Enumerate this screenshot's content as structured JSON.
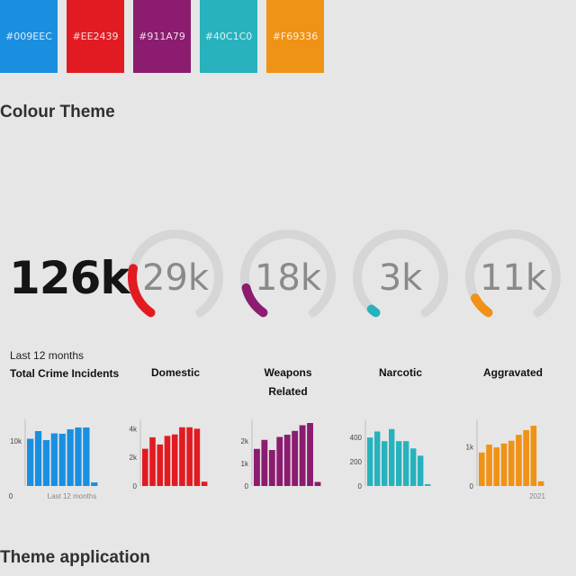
{
  "swatches": [
    {
      "hex": "#009EEC",
      "color": "#1a8fe0",
      "x": 0
    },
    {
      "hex": "#EE2439",
      "color": "#e21b22",
      "x": 74
    },
    {
      "hex": "#911A79",
      "color": "#8b1c6f",
      "x": 148
    },
    {
      "hex": "#40C1C0",
      "color": "#27b2bd",
      "x": 222
    },
    {
      "hex": "#F69336",
      "color": "#f09215",
      "x": 296
    }
  ],
  "section_colour_theme": "Colour Theme",
  "section_theme_application": "Theme application",
  "total": {
    "value": "126k",
    "sub": "Last 12 months",
    "label": "Total Crime Incidents"
  },
  "gauges": [
    {
      "value": "29k",
      "label": "Domestic",
      "color": "#e21b22",
      "fraction": 0.23
    },
    {
      "value": "18k",
      "label": "Weapons\nRelated",
      "color": "#8b1c6f",
      "fraction": 0.14
    },
    {
      "value": "3k",
      "label": "Narcotic",
      "color": "#27b2bd",
      "fraction": 0.025
    },
    {
      "value": "11k",
      "label": "Aggravated",
      "color": "#f09215",
      "fraction": 0.09
    }
  ],
  "chart_data": [
    {
      "type": "bar",
      "color": "#1a8fe0",
      "yticks": [
        "10k"
      ],
      "ytick_values": [
        10000
      ],
      "x_min_label": "0",
      "x_caption": "Last 12 months",
      "ylim": [
        0,
        14000
      ],
      "values": [
        10500,
        12200,
        10200,
        11700,
        11600,
        12600,
        13000,
        13000,
        800
      ]
    },
    {
      "type": "bar",
      "color": "#e21b22",
      "yticks": [
        "4k",
        "2k",
        "0"
      ],
      "ytick_values": [
        4000,
        2000,
        0
      ],
      "ylim": [
        0,
        4400
      ],
      "values": [
        2600,
        3400,
        2900,
        3500,
        3600,
        4100,
        4100,
        4000,
        300
      ]
    },
    {
      "type": "bar",
      "color": "#8b1c6f",
      "yticks": [
        "2k",
        "1k",
        "0"
      ],
      "ytick_values": [
        2000,
        1000,
        0
      ],
      "ylim": [
        0,
        2800
      ],
      "values": [
        1650,
        2050,
        1600,
        2180,
        2280,
        2450,
        2700,
        2800,
        180
      ]
    },
    {
      "type": "bar",
      "color": "#27b2bd",
      "yticks": [
        "400",
        "200",
        "0"
      ],
      "ytick_values": [
        400,
        200,
        0
      ],
      "ylim": [
        0,
        520
      ],
      "values": [
        400,
        450,
        370,
        470,
        370,
        370,
        310,
        250,
        15
      ]
    },
    {
      "type": "bar",
      "color": "#f09215",
      "yticks": [
        "1k",
        "0"
      ],
      "ytick_values": [
        1000,
        0
      ],
      "x_caption": "2021",
      "ylim": [
        0,
        1600
      ],
      "values": [
        850,
        1050,
        980,
        1080,
        1150,
        1300,
        1420,
        1530,
        120
      ]
    }
  ]
}
